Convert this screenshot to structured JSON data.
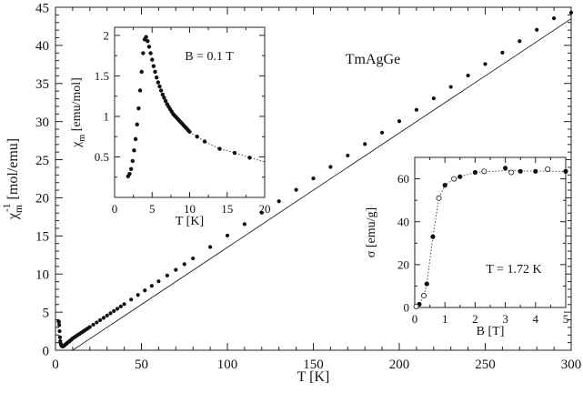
{
  "chart_data": [
    {
      "type": "scatter",
      "role": "main",
      "xlabel": "T [K]",
      "ylabel": "χ_m⁻¹ [mol/emu]",
      "xlim": [
        0,
        300
      ],
      "ylim": [
        0,
        45
      ],
      "xticks": [
        0,
        50,
        100,
        150,
        200,
        250,
        300
      ],
      "yticks": [
        0,
        5,
        10,
        15,
        20,
        25,
        30,
        35,
        40,
        45
      ],
      "grid": false,
      "annotations": [
        "TmAgGe"
      ],
      "series": [
        {
          "style": "filled-circles",
          "x": [
            1.8,
            2.0,
            2.2,
            2.4,
            2.6,
            2.8,
            3.0,
            3.3,
            3.6,
            4.0,
            4.4,
            4.8,
            5.2,
            5.6,
            6.0,
            6.5,
            7.0,
            7.5,
            8.0,
            8.5,
            9.0,
            9.5,
            10,
            11,
            12,
            13,
            14,
            15,
            16,
            17,
            18,
            19,
            20,
            22,
            24,
            26,
            28,
            30,
            32,
            34,
            36,
            38,
            40,
            44,
            48,
            52,
            56,
            60,
            65,
            70,
            75,
            80,
            90,
            100,
            110,
            120,
            130,
            140,
            150,
            160,
            170,
            180,
            190,
            200,
            210,
            220,
            230,
            240,
            250,
            260,
            270,
            280,
            290,
            300
          ],
          "y": [
            3.8,
            3.7,
            3.3,
            2.5,
            1.7,
            1.2,
            0.9,
            0.7,
            0.55,
            0.5,
            0.5,
            0.55,
            0.65,
            0.72,
            0.8,
            0.9,
            0.98,
            1.07,
            1.15,
            1.25,
            1.35,
            1.45,
            1.55,
            1.7,
            1.85,
            2.0,
            2.15,
            2.3,
            2.45,
            2.6,
            2.75,
            2.9,
            3.05,
            3.35,
            3.65,
            3.95,
            4.25,
            4.55,
            4.85,
            5.15,
            5.45,
            5.75,
            6.05,
            6.65,
            7.25,
            7.85,
            8.45,
            9.05,
            9.8,
            10.55,
            11.3,
            12.05,
            13.55,
            15.05,
            16.55,
            18.05,
            19.55,
            21.05,
            22.55,
            24.05,
            25.55,
            27.05,
            28.55,
            30.05,
            31.55,
            33.05,
            34.55,
            36.05,
            37.55,
            39.05,
            40.55,
            42.05,
            43.55,
            44.3
          ]
        },
        {
          "style": "fit-line",
          "x": [
            10,
            300
          ],
          "y": [
            0,
            43.5
          ]
        }
      ]
    },
    {
      "type": "scatter",
      "role": "inset-top-left",
      "xlabel": "T [K]",
      "ylabel": "χ_m [emu/mol]",
      "xlim": [
        0,
        20
      ],
      "ylim": [
        0,
        2.1
      ],
      "xticks": [
        0,
        5,
        10,
        15,
        20
      ],
      "yticks": [
        0.5,
        1,
        1.5,
        2
      ],
      "annotations": [
        "B = 0.1 T"
      ],
      "series": [
        {
          "style": "filled-circles",
          "x": [
            1.8,
            2.0,
            2.2,
            2.4,
            2.6,
            2.8,
            3.0,
            3.2,
            3.4,
            3.6,
            3.8,
            4.0,
            4.2,
            4.4,
            4.6,
            4.8,
            5.0,
            5.2,
            5.4,
            5.6,
            5.8,
            6.0,
            6.2,
            6.4,
            6.6,
            6.8,
            7.0,
            7.2,
            7.4,
            7.6,
            7.8,
            8.0,
            8.2,
            8.4,
            8.6,
            8.8,
            9.0,
            9.2,
            9.4,
            9.6,
            9.8,
            10.0,
            11.0,
            12.0,
            14.0,
            16.0,
            18.0
          ],
          "y": [
            0.26,
            0.29,
            0.35,
            0.45,
            0.58,
            0.72,
            0.9,
            1.1,
            1.32,
            1.55,
            1.78,
            1.95,
            1.98,
            1.93,
            1.86,
            1.78,
            1.7,
            1.62,
            1.55,
            1.48,
            1.42,
            1.37,
            1.32,
            1.27,
            1.23,
            1.19,
            1.15,
            1.12,
            1.09,
            1.06,
            1.03,
            1.01,
            0.99,
            0.97,
            0.95,
            0.93,
            0.91,
            0.89,
            0.87,
            0.85,
            0.83,
            0.81,
            0.75,
            0.69,
            0.6,
            0.55,
            0.49
          ]
        },
        {
          "style": "dotted-line",
          "x": [
            10,
            12,
            14,
            16,
            18,
            20
          ],
          "y": [
            0.81,
            0.69,
            0.6,
            0.55,
            0.49,
            0.44
          ]
        }
      ]
    },
    {
      "type": "scatter",
      "role": "inset-bottom-right",
      "xlabel": "B [T]",
      "ylabel": "σ [emu/g]",
      "xlim": [
        0,
        5
      ],
      "ylim": [
        0,
        70
      ],
      "xticks": [
        0,
        1,
        2,
        3,
        4,
        5
      ],
      "yticks": [
        0,
        20,
        40,
        60
      ],
      "annotations": [
        "T = 1.72 K"
      ],
      "series": [
        {
          "style": "filled-circles",
          "x": [
            0.15,
            0.4,
            0.6,
            1.0,
            1.5,
            2.0,
            3.0,
            3.5,
            4.0,
            5.0
          ],
          "y": [
            1.5,
            11,
            33,
            57,
            61,
            63,
            65,
            63.5,
            63.5,
            63.5
          ]
        },
        {
          "style": "open-circles",
          "x": [
            0.05,
            0.3,
            0.8,
            1.3,
            2.3,
            3.2,
            4.4
          ],
          "y": [
            0.5,
            5.5,
            51,
            60,
            63.5,
            63,
            64.5
          ]
        },
        {
          "style": "dotted-line",
          "x": [
            0,
            0.15,
            0.3,
            0.4,
            0.6,
            0.8,
            1.0,
            1.3,
            1.5,
            2.0,
            2.5,
            3.0,
            4.0,
            5.0
          ],
          "y": [
            0,
            1.5,
            5.5,
            11,
            33,
            51,
            57,
            60,
            61,
            63,
            63.5,
            63.8,
            63.6,
            63.5
          ]
        }
      ]
    }
  ]
}
